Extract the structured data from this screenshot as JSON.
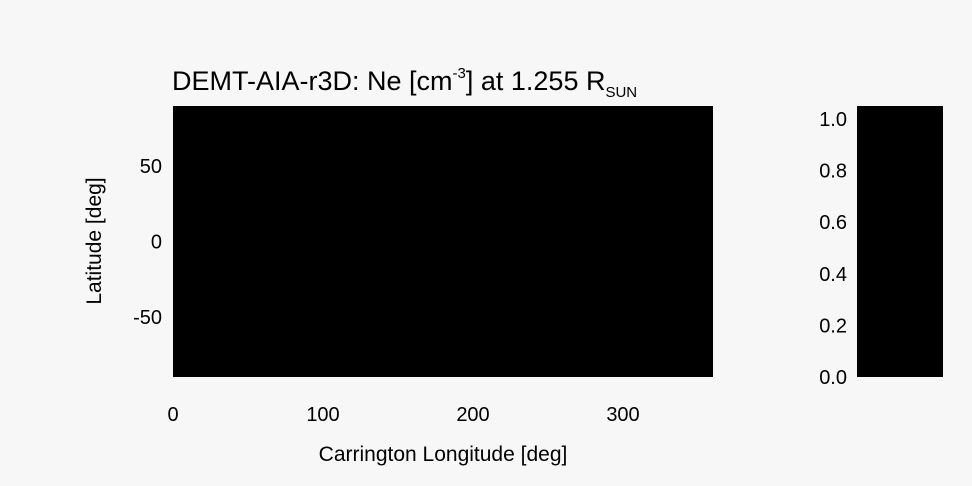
{
  "chart_data": {
    "type": "heatmap",
    "title": {
      "prefix": "DEMT-AIA-r3D: Ne [cm",
      "superscript": "-3",
      "middle": "] at 1.255 R",
      "subscript": "SUN"
    },
    "xlabel": "Carrington Longitude [deg]",
    "ylabel": "Latitude [deg]",
    "xlim": [
      0,
      360
    ],
    "ylim": [
      -90,
      90
    ],
    "x_ticks": [
      {
        "value": 0,
        "label": "0"
      },
      {
        "value": 100,
        "label": "100"
      },
      {
        "value": 200,
        "label": "200"
      },
      {
        "value": 300,
        "label": "300"
      }
    ],
    "y_ticks": [
      {
        "value": 50,
        "label": "50"
      },
      {
        "value": 0,
        "label": "0"
      },
      {
        "value": -50,
        "label": "-50"
      }
    ],
    "field_value": 0.0,
    "map_color": "#000000",
    "grid": false,
    "colorbar": {
      "position": "right",
      "range": [
        0.0,
        1.05
      ],
      "color": "#000000",
      "ticks": [
        {
          "value": 1.0,
          "label": "1.0"
        },
        {
          "value": 0.8,
          "label": "0.8"
        },
        {
          "value": 0.6,
          "label": "0.6"
        },
        {
          "value": 0.4,
          "label": "0.4"
        },
        {
          "value": 0.2,
          "label": "0.2"
        },
        {
          "value": 0.0,
          "label": "0.0"
        }
      ]
    }
  },
  "colors": {
    "background": "#f7f7f7",
    "text": "#000000"
  }
}
